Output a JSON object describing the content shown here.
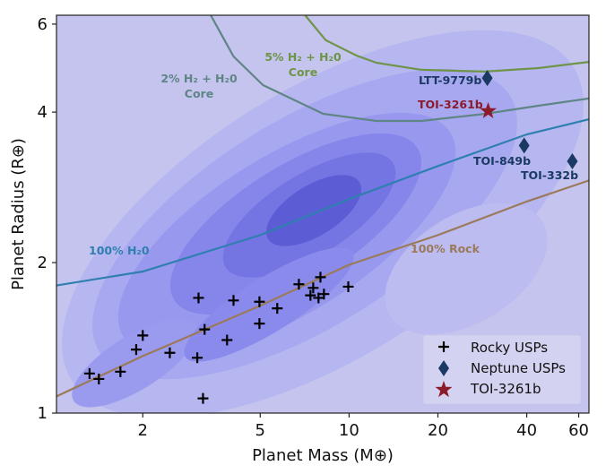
{
  "chart_data": {
    "type": "scatter",
    "xlabel": "Planet Mass (M⊕)",
    "ylabel": "Planet Radius (R⊕)",
    "xscale": "log",
    "yscale": "log",
    "xlim": [
      1.02,
      65
    ],
    "ylim": [
      1,
      6.25
    ],
    "xticks": [
      2,
      5,
      10,
      20,
      40,
      60
    ],
    "yticks": [
      1,
      2,
      4,
      6
    ],
    "grid": false,
    "background": "density contours (blue/purple shading)",
    "legend": {
      "placement": "bottom-right",
      "entries": [
        {
          "label": "Rocky USPs",
          "marker": "plus",
          "color": "#000000"
        },
        {
          "label": "Neptune USPs",
          "marker": "diamond",
          "color": "#1b3a63"
        },
        {
          "label": "TOI-3261b",
          "marker": "star",
          "color": "#8b1a2b"
        }
      ]
    },
    "series": [
      {
        "name": "Rocky USPs",
        "marker": "plus",
        "color": "#000000",
        "points": [
          [
            1.32,
            1.2
          ],
          [
            1.42,
            1.17
          ],
          [
            1.68,
            1.21
          ],
          [
            1.9,
            1.34
          ],
          [
            2.0,
            1.43
          ],
          [
            2.47,
            1.32
          ],
          [
            3.09,
            1.7
          ],
          [
            3.06,
            1.29
          ],
          [
            3.2,
            1.07
          ],
          [
            3.24,
            1.47
          ],
          [
            3.86,
            1.4
          ],
          [
            4.06,
            1.68
          ],
          [
            4.97,
            1.67
          ],
          [
            4.97,
            1.51
          ],
          [
            5.71,
            1.62
          ],
          [
            6.76,
            1.81
          ],
          [
            7.56,
            1.78
          ],
          [
            7.4,
            1.72
          ],
          [
            8.0,
            1.87
          ],
          [
            7.88,
            1.7
          ],
          [
            8.22,
            1.73
          ],
          [
            9.94,
            1.79
          ]
        ]
      },
      {
        "name": "Neptune USPs",
        "marker": "diamond",
        "color": "#1b3a63",
        "points": [
          {
            "label": "LTT-9779b",
            "x": 29.4,
            "y": 4.68
          },
          {
            "label": "TOI-849b",
            "x": 39.2,
            "y": 3.43
          },
          {
            "label": "TOI-332b",
            "x": 57.1,
            "y": 3.19
          }
        ]
      },
      {
        "name": "TOI-3261b",
        "marker": "star",
        "color": "#8b1a2b",
        "points": [
          {
            "label": "TOI-3261b",
            "x": 29.6,
            "y": 4.02
          }
        ]
      }
    ],
    "curves": [
      {
        "label": "100% H₂0",
        "color": "#2f7fb0",
        "points": [
          [
            1.02,
            1.8
          ],
          [
            2,
            1.92
          ],
          [
            5,
            2.27
          ],
          [
            10,
            2.68
          ],
          [
            20,
            3.12
          ],
          [
            40,
            3.61
          ],
          [
            65,
            3.87
          ]
        ]
      },
      {
        "label": "100% Rock",
        "color": "#9a7a5a",
        "points": [
          [
            1.02,
            1.08
          ],
          [
            2,
            1.3
          ],
          [
            5,
            1.64
          ],
          [
            10,
            1.98
          ],
          [
            20,
            2.27
          ],
          [
            40,
            2.65
          ],
          [
            65,
            2.92
          ]
        ]
      },
      {
        "label": "2% H₂ + H₂0",
        "label2": "Core",
        "color": "#5f8585",
        "points": [
          [
            3.4,
            6.25
          ],
          [
            4.06,
            5.17
          ],
          [
            5.11,
            4.53
          ],
          [
            8.17,
            3.97
          ],
          [
            12.4,
            3.84
          ],
          [
            17.6,
            3.84
          ],
          [
            29,
            3.97
          ],
          [
            43.8,
            4.12
          ],
          [
            65,
            4.26
          ]
        ]
      },
      {
        "label": "5% H₂ + H₂0",
        "label2": "Core",
        "color": "#6e9448",
        "points": [
          [
            7.1,
            6.25
          ],
          [
            8.34,
            5.57
          ],
          [
            10.6,
            5.19
          ],
          [
            12.4,
            5.02
          ],
          [
            17.6,
            4.86
          ],
          [
            28.8,
            4.82
          ],
          [
            43.8,
            4.9
          ],
          [
            65,
            5.04
          ]
        ]
      }
    ]
  }
}
